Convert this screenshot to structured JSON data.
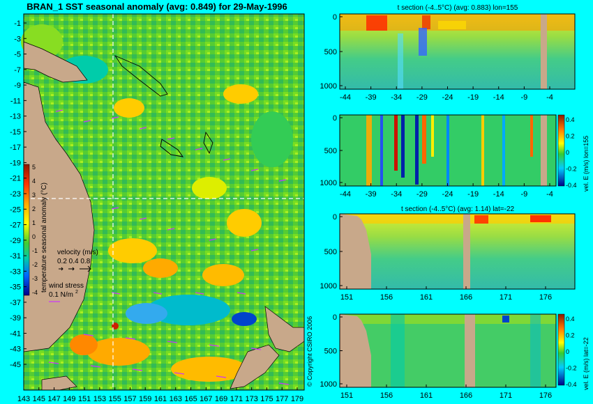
{
  "main_title": "BRAN_1 SST seasonal anomaly (avg: 0.849) for 29-May-1996",
  "copyright": "© Copyright CSIRO 2006",
  "colors": {
    "background": "#00ffff",
    "land": "#c8a88a",
    "vector": "#cc33ff",
    "crosshair": "#ffffff"
  },
  "map": {
    "lat_ticks": [
      "-1",
      "-3",
      "-5",
      "-7",
      "-9",
      "-11",
      "-13",
      "-15",
      "-17",
      "-19",
      "-21",
      "-23",
      "-25",
      "-27",
      "-29",
      "-31",
      "-33",
      "-35",
      "-37",
      "-39",
      "-41",
      "-43",
      "-45"
    ],
    "lon_ticks": [
      "143",
      "145",
      "147",
      "149",
      "151",
      "153",
      "155",
      "157",
      "159",
      "161",
      "163",
      "165",
      "167",
      "169",
      "171",
      "173",
      "175",
      "177",
      "179"
    ],
    "colorbar_label": "temperature seasonal anomaly (°C)",
    "colorbar_ticks": [
      "5",
      "4",
      "3",
      "2",
      "1",
      "0",
      "-1",
      "-2",
      "-3",
      "-4"
    ],
    "velocity_label": "velocity (m/s)",
    "velocity_scale": "0.2 0.4 0.8",
    "wind_label": "wind stress",
    "wind_scale": "0.1 N/m",
    "wind_scale_sup": "2"
  },
  "panels": [
    {
      "title": "t section (-4..5°C) (avg: 0.883) lon=155",
      "x_ticks": [
        "-44",
        "-39",
        "-34",
        "-29",
        "-24",
        "-19",
        "-14",
        "-9",
        "-4"
      ],
      "y_ticks": [
        "0",
        "500",
        "1000"
      ]
    },
    {
      "title": "",
      "x_ticks": [
        "-44",
        "-39",
        "-34",
        "-29",
        "-24",
        "-19",
        "-14",
        "-9",
        "-4"
      ],
      "y_ticks": [
        "0",
        "500",
        "1000"
      ],
      "colorbar_label": "vel. E (m/s) lon=155",
      "colorbar_ticks": [
        "0.4",
        "0.2",
        "0",
        "-0.2",
        "-0.4"
      ]
    },
    {
      "title": "t section (-4..5°C) (avg: 1.14) lat=-22",
      "x_ticks": [
        "151",
        "156",
        "161",
        "166",
        "171",
        "176"
      ],
      "y_ticks": [
        "0",
        "500",
        "1000"
      ]
    },
    {
      "title": "",
      "x_ticks": [
        "151",
        "156",
        "161",
        "166",
        "171",
        "176"
      ],
      "y_ticks": [
        "0",
        "500",
        "1000"
      ],
      "colorbar_label": "vel. E (m/s) lat=-22",
      "colorbar_ticks": [
        "0.4",
        "0.2",
        "0",
        "-0.2",
        "-0.4"
      ]
    }
  ],
  "chart_data": [
    {
      "type": "heatmap",
      "title": "BRAN_1 SST seasonal anomaly (avg: 0.849) for 29-May-1996",
      "xlabel": "",
      "ylabel": "",
      "x_range": [
        142,
        180
      ],
      "y_range": [
        -45,
        0
      ],
      "colorbar": {
        "label": "temperature seasonal anomaly (°C)",
        "range": [
          -4,
          5
        ]
      },
      "crosshair": {
        "lon": 155,
        "lat": -22
      }
    },
    {
      "type": "heatmap",
      "title": "t section (-4..5°C) (avg: 0.883) lon=155",
      "x_range": [
        -45,
        -1
      ],
      "y_range": [
        1000,
        0
      ]
    },
    {
      "type": "heatmap",
      "title": "",
      "x_range": [
        -45,
        -1
      ],
      "y_range": [
        1000,
        0
      ],
      "colorbar": {
        "label": "vel. E (m/s) lon=155",
        "range": [
          -0.4,
          0.4
        ]
      }
    },
    {
      "type": "heatmap",
      "title": "t section (-4..5°C) (avg: 1.14) lat=-22",
      "x_range": [
        150,
        180
      ],
      "y_range": [
        1000,
        0
      ]
    },
    {
      "type": "heatmap",
      "title": "",
      "x_range": [
        150,
        180
      ],
      "y_range": [
        1000,
        0
      ],
      "colorbar": {
        "label": "vel. E (m/s) lat=-22",
        "range": [
          -0.4,
          0.4
        ]
      }
    }
  ]
}
